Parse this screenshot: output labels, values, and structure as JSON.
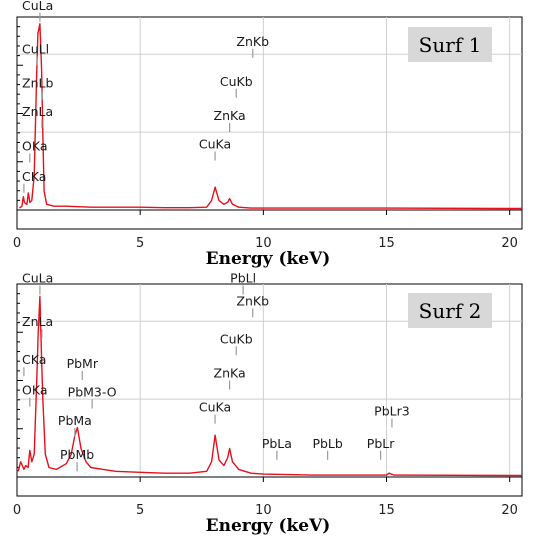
{
  "chart_data": [
    {
      "type": "line",
      "title": "Surf 1",
      "xlabel": "Energy (keV)",
      "ylabel": "",
      "xlim": [
        0,
        20.5
      ],
      "xticks": [
        "0",
        "5",
        "10",
        "15",
        "20"
      ],
      "xtick_values": [
        0,
        5,
        10,
        15,
        20
      ],
      "ylim": [
        0,
        100
      ],
      "grid": true,
      "series": [
        {
          "color": "#e8101c",
          "x": [
            0.1,
            0.2,
            0.26,
            0.3,
            0.4,
            0.46,
            0.52,
            0.6,
            0.7,
            0.8,
            0.85,
            0.93,
            1.0,
            1.05,
            1.1,
            1.2,
            1.5,
            2,
            3,
            4,
            5,
            6,
            7,
            7.7,
            7.9,
            8.04,
            8.2,
            8.4,
            8.55,
            8.63,
            8.75,
            9,
            9.5,
            10,
            12,
            15,
            20,
            20.5
          ],
          "y": [
            1,
            2,
            7,
            4,
            3,
            9,
            4,
            5,
            18,
            72,
            93,
            98,
            74,
            38,
            10,
            3,
            2,
            2,
            1.5,
            1.5,
            1.5,
            1.2,
            1.2,
            1.5,
            5,
            12,
            5,
            3,
            4,
            6,
            3,
            1.5,
            1,
            1,
            1,
            1,
            0.8,
            0.8
          ]
        }
      ],
      "peaks": [
        {
          "label": "CuLa",
          "x": 0.93,
          "level": 98
        },
        {
          "label": "CuLl",
          "x": 0.81,
          "level": 75
        },
        {
          "label": "ZnLb",
          "x": 1.03,
          "level": 57
        },
        {
          "label": "ZnLa",
          "x": 1.01,
          "level": 42
        },
        {
          "label": "OKa",
          "x": 0.52,
          "level": 24
        },
        {
          "label": "CKa",
          "x": 0.28,
          "level": 8
        },
        {
          "label": "CuKa",
          "x": 8.04,
          "level": 25
        },
        {
          "label": "ZnKa",
          "x": 8.63,
          "level": 40
        },
        {
          "label": "CuKb",
          "x": 8.9,
          "level": 58
        },
        {
          "label": "ZnKb",
          "x": 9.57,
          "level": 79
        }
      ]
    },
    {
      "type": "line",
      "title": "Surf 2",
      "xlabel": "Energy (keV)",
      "ylabel": "",
      "xlim": [
        0,
        20.5
      ],
      "xticks": [
        "0",
        "5",
        "10",
        "15",
        "20"
      ],
      "xtick_values": [
        0,
        5,
        10,
        15,
        20
      ],
      "ylim": [
        0,
        100
      ],
      "grid": true,
      "series": [
        {
          "color": "#e8101c",
          "x": [
            0.05,
            0.15,
            0.28,
            0.35,
            0.45,
            0.52,
            0.6,
            0.7,
            0.8,
            0.86,
            0.93,
            1.0,
            1.05,
            1.15,
            1.3,
            1.6,
            2.0,
            2.2,
            2.35,
            2.45,
            2.6,
            2.8,
            3.0,
            3.5,
            4,
            5,
            6,
            7,
            7.7,
            7.9,
            8.04,
            8.2,
            8.4,
            8.55,
            8.63,
            8.75,
            9,
            9.5,
            10,
            12,
            15,
            15.1,
            15.3,
            20,
            20.5
          ],
          "y": [
            3,
            8,
            4,
            6,
            5,
            14,
            8,
            12,
            50,
            76,
            95,
            62,
            40,
            12,
            5,
            4,
            7,
            12,
            22,
            26,
            15,
            8,
            5,
            4,
            3,
            2.5,
            2,
            2,
            3,
            8,
            22,
            9,
            6,
            10,
            15,
            8,
            4,
            2,
            1.5,
            1,
            1,
            2,
            1,
            0.8,
            0.8
          ]
        }
      ],
      "peaks": [
        {
          "label": "CuLa",
          "x": 0.93,
          "level": 95
        },
        {
          "label": "ZnLa",
          "x": 1.01,
          "level": 72
        },
        {
          "label": "CKa",
          "x": 0.28,
          "level": 52
        },
        {
          "label": "OKa",
          "x": 0.52,
          "level": 36
        },
        {
          "label": "PbMr",
          "x": 2.65,
          "level": 50
        },
        {
          "label": "PbM3-O",
          "x": 3.05,
          "level": 35
        },
        {
          "label": "PbMa",
          "x": 2.35,
          "level": 20
        },
        {
          "label": "PbMb",
          "x": 2.44,
          "level": 2
        },
        {
          "label": "CuKa",
          "x": 8.04,
          "level": 27
        },
        {
          "label": "ZnKa",
          "x": 8.63,
          "level": 45
        },
        {
          "label": "CuKb",
          "x": 8.9,
          "level": 63
        },
        {
          "label": "ZnKb",
          "x": 9.57,
          "level": 83
        },
        {
          "label": "PbLl",
          "x": 9.18,
          "level": 95
        },
        {
          "label": "PbLa",
          "x": 10.55,
          "level": 8
        },
        {
          "label": "PbLb",
          "x": 12.61,
          "level": 8
        },
        {
          "label": "PbLr",
          "x": 14.76,
          "level": 8
        },
        {
          "label": "PbLr3",
          "x": 15.22,
          "level": 25
        }
      ]
    }
  ]
}
